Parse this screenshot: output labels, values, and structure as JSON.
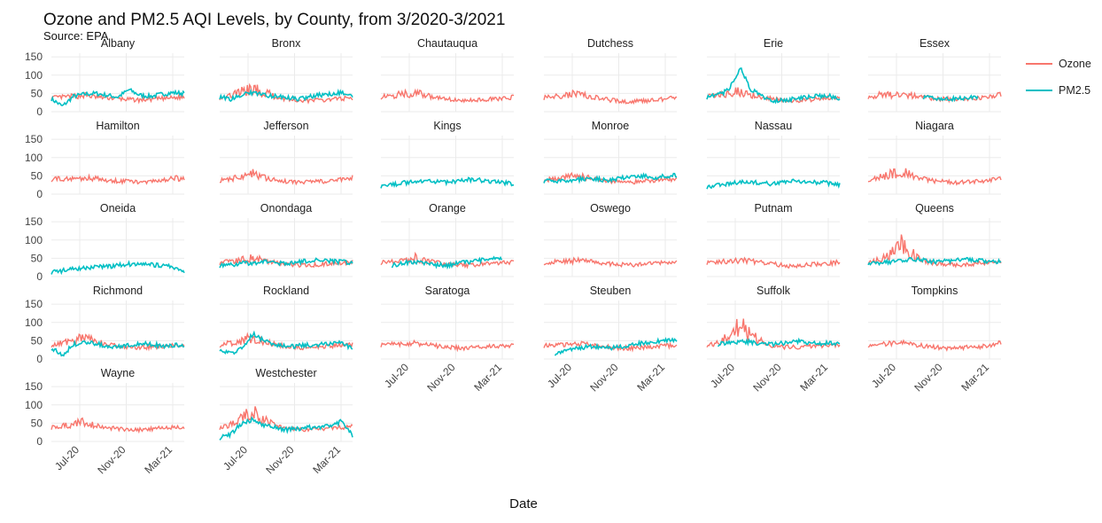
{
  "chart_data": {
    "type": "line",
    "title": "Ozone and PM2.5 AQI Levels, by County, from 3/2020-3/2021",
    "subtitle": "Source: EPA",
    "xlabel": "Date",
    "ylabel": "",
    "x_ticks": [
      "Jul-20",
      "Nov-20",
      "Mar-21"
    ],
    "y_ticks": [
      "0",
      "50",
      "100",
      "150"
    ],
    "ylim": [
      0,
      150
    ],
    "grid": true,
    "legend_position": "right",
    "series_colors": {
      "Ozone": "#F8766D",
      "PM2.5": "#00BFC4"
    },
    "legend": [
      "Ozone",
      "PM2.5"
    ],
    "counties": [
      {
        "name": "Albany",
        "ozone": [
          38,
          40,
          42,
          45,
          40,
          38,
          36,
          33,
          32,
          34,
          36,
          38,
          40
        ],
        "pm25": [
          35,
          15,
          42,
          48,
          50,
          45,
          40,
          60,
          45,
          42,
          48,
          52,
          50
        ]
      },
      {
        "name": "Bronx",
        "ozone": [
          38,
          45,
          55,
          60,
          55,
          40,
          35,
          32,
          30,
          32,
          34,
          36,
          38
        ],
        "pm25": [
          40,
          35,
          48,
          52,
          45,
          42,
          38,
          35,
          40,
          45,
          48,
          52,
          40
        ]
      },
      {
        "name": "Chautauqua",
        "ozone": [
          40,
          45,
          48,
          52,
          45,
          38,
          35,
          32,
          30,
          32,
          34,
          36,
          40
        ],
        "pm25": null
      },
      {
        "name": "Dutchess",
        "ozone": [
          38,
          42,
          45,
          50,
          42,
          38,
          32,
          28,
          28,
          30,
          32,
          35,
          38
        ],
        "pm25": null
      },
      {
        "name": "Erie",
        "ozone": [
          40,
          45,
          50,
          58,
          48,
          40,
          35,
          32,
          30,
          32,
          35,
          38,
          40
        ],
        "pm25": [
          40,
          45,
          60,
          120,
          60,
          42,
          30,
          32,
          35,
          40,
          42,
          45,
          30
        ]
      },
      {
        "name": "Essex",
        "ozone": [
          42,
          45,
          46,
          48,
          44,
          40,
          36,
          34,
          33,
          35,
          38,
          42,
          45
        ],
        "pm25": [
          null,
          null,
          null,
          null,
          null,
          40,
          38,
          36,
          36,
          38,
          40,
          null,
          null
        ]
      },
      {
        "name": "Hamilton",
        "ozone": [
          40,
          42,
          43,
          44,
          42,
          38,
          36,
          34,
          33,
          35,
          38,
          42,
          45
        ],
        "pm25": null
      },
      {
        "name": "Jefferson",
        "ozone": [
          38,
          42,
          46,
          55,
          45,
          38,
          35,
          33,
          32,
          34,
          36,
          40,
          44
        ],
        "pm25": null
      },
      {
        "name": "Kings",
        "ozone": null,
        "pm25": [
          22,
          26,
          30,
          35,
          38,
          34,
          32,
          36,
          40,
          38,
          35,
          32,
          28
        ]
      },
      {
        "name": "Monroe",
        "ozone": [
          38,
          42,
          46,
          52,
          45,
          40,
          36,
          34,
          33,
          35,
          38,
          40,
          42
        ],
        "pm25": [
          36,
          34,
          38,
          40,
          42,
          40,
          38,
          44,
          48,
          50,
          46,
          48,
          52
        ]
      },
      {
        "name": "Nassau",
        "ozone": null,
        "pm25": [
          20,
          24,
          28,
          32,
          34,
          30,
          28,
          32,
          36,
          34,
          32,
          30,
          26
        ]
      },
      {
        "name": "Niagara",
        "ozone": [
          40,
          45,
          55,
          60,
          50,
          42,
          36,
          33,
          32,
          34,
          36,
          38,
          42
        ],
        "pm25": null
      },
      {
        "name": "Oneida",
        "ozone": null,
        "pm25": [
          12,
          16,
          20,
          24,
          26,
          28,
          30,
          34,
          36,
          32,
          30,
          26,
          10
        ]
      },
      {
        "name": "Onondaga",
        "ozone": [
          38,
          42,
          46,
          50,
          44,
          38,
          34,
          32,
          31,
          33,
          36,
          38,
          40
        ],
        "pm25": [
          30,
          32,
          36,
          38,
          40,
          38,
          36,
          40,
          44,
          46,
          42,
          40,
          38
        ]
      },
      {
        "name": "Orange",
        "ozone": [
          38,
          42,
          46,
          52,
          44,
          38,
          34,
          32,
          31,
          33,
          36,
          38,
          40
        ],
        "pm25": [
          null,
          30,
          38,
          40,
          36,
          32,
          30,
          36,
          40,
          45,
          48,
          50,
          null
        ]
      },
      {
        "name": "Oswego",
        "ozone": [
          38,
          40,
          42,
          44,
          42,
          38,
          35,
          33,
          32,
          34,
          36,
          38,
          42
        ],
        "pm25": null
      },
      {
        "name": "Putnam",
        "ozone": [
          38,
          40,
          42,
          44,
          42,
          38,
          34,
          30,
          28,
          32,
          34,
          36,
          40
        ],
        "pm25": null
      },
      {
        "name": "Queens",
        "ozone": [
          38,
          45,
          60,
          85,
          60,
          42,
          36,
          33,
          32,
          34,
          36,
          38,
          40
        ],
        "pm25": [
          38,
          36,
          40,
          45,
          48,
          44,
          40,
          42,
          46,
          48,
          44,
          42,
          40
        ]
      },
      {
        "name": "Richmond",
        "ozone": [
          38,
          45,
          52,
          60,
          50,
          40,
          35,
          32,
          31,
          33,
          35,
          38,
          40
        ],
        "pm25": [
          30,
          10,
          40,
          45,
          42,
          36,
          34,
          38,
          42,
          40,
          36,
          38,
          35
        ]
      },
      {
        "name": "Rockland",
        "ozone": [
          38,
          44,
          50,
          58,
          48,
          40,
          35,
          32,
          31,
          33,
          35,
          38,
          40
        ],
        "pm25": [
          28,
          15,
          30,
          70,
          50,
          40,
          34,
          36,
          38,
          40,
          42,
          44,
          30
        ]
      },
      {
        "name": "Saratoga",
        "ozone": [
          38,
          40,
          42,
          44,
          40,
          36,
          33,
          30,
          30,
          32,
          34,
          36,
          38
        ],
        "pm25": null
      },
      {
        "name": "Steuben",
        "ozone": [
          36,
          38,
          40,
          42,
          40,
          36,
          33,
          30,
          30,
          32,
          34,
          36,
          38
        ],
        "pm25": [
          null,
          15,
          22,
          30,
          34,
          32,
          30,
          34,
          40,
          44,
          48,
          52,
          54
        ]
      },
      {
        "name": "Suffolk",
        "ozone": [
          38,
          45,
          60,
          90,
          70,
          45,
          36,
          33,
          32,
          34,
          36,
          38,
          40
        ],
        "pm25": [
          null,
          40,
          44,
          48,
          46,
          42,
          40,
          44,
          50,
          46,
          42,
          44,
          40
        ]
      },
      {
        "name": "Tompkins",
        "ozone": [
          38,
          40,
          42,
          44,
          40,
          36,
          33,
          30,
          30,
          32,
          34,
          36,
          46
        ],
        "pm25": null
      },
      {
        "name": "Wayne",
        "ozone": [
          38,
          42,
          48,
          55,
          45,
          38,
          35,
          33,
          32,
          34,
          36,
          38,
          42
        ],
        "pm25": null
      },
      {
        "name": "Westchester",
        "ozone": [
          38,
          45,
          60,
          80,
          60,
          42,
          36,
          33,
          32,
          34,
          36,
          38,
          40
        ],
        "pm25": [
          10,
          20,
          50,
          60,
          45,
          38,
          32,
          34,
          38,
          40,
          42,
          55,
          15
        ]
      }
    ]
  }
}
